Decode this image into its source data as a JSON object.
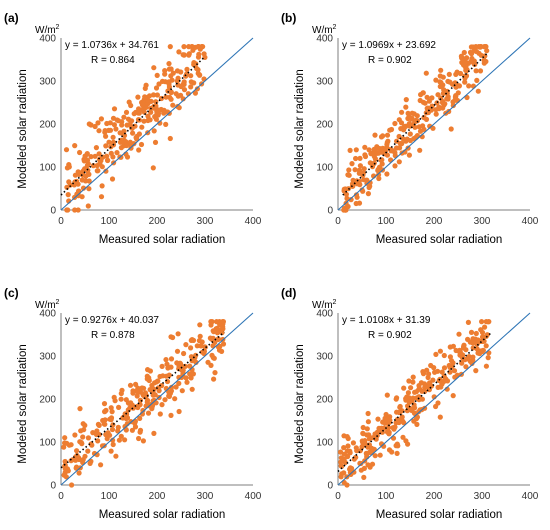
{
  "chart_data": [
    {
      "panel": "(a)",
      "type": "scatter",
      "unit": "W/m",
      "unit_sup": "2",
      "xlabel": "Measured solar radiation",
      "ylabel": "Modeled solar radiation",
      "xlim": [
        0,
        400
      ],
      "ylim": [
        0,
        400
      ],
      "xticks": [
        "0",
        "100",
        "200",
        "300",
        "400"
      ],
      "yticks": [
        "0",
        "100",
        "200",
        "300",
        "400"
      ],
      "equation": "y = 1.0736x + 34.761",
      "r_label": "R = 0.864",
      "fit": {
        "slope": 1.0736,
        "intercept": 34.761,
        "x_range": [
          0,
          300
        ]
      },
      "seed": 11,
      "point_count": 290,
      "noise_sd": 38,
      "x_range": [
        10,
        300
      ],
      "marker_color": "#ED7D31",
      "identity_line_color": "#2E75B6",
      "grid": false
    },
    {
      "panel": "(b)",
      "type": "scatter",
      "unit": "W/m",
      "unit_sup": "2",
      "xlabel": "Measured solar radiation",
      "ylabel": "Modeled solar radiation",
      "xlim": [
        0,
        400
      ],
      "ylim": [
        0,
        400
      ],
      "xticks": [
        "0",
        "100",
        "200",
        "300",
        "400"
      ],
      "yticks": [
        "0",
        "100",
        "200",
        "300",
        "400"
      ],
      "equation": "y = 1.0969x + 23.692",
      "r_label": "R = 0.902",
      "fit": {
        "slope": 1.0969,
        "intercept": 23.692,
        "x_range": [
          10,
          310
        ]
      },
      "seed": 23,
      "point_count": 290,
      "noise_sd": 32,
      "x_range": [
        10,
        310
      ],
      "marker_color": "#ED7D31",
      "identity_line_color": "#2E75B6",
      "grid": false
    },
    {
      "panel": "(c)",
      "type": "scatter",
      "unit": "W/m",
      "unit_sup": "2",
      "xlabel": "Measured solar radiation",
      "ylabel": "Modeled solar radiation",
      "xlim": [
        0,
        400
      ],
      "ylim": [
        0,
        400
      ],
      "xticks": [
        "0",
        "100",
        "200",
        "300",
        "400"
      ],
      "yticks": [
        "0",
        "100",
        "200",
        "300",
        "400"
      ],
      "equation": "y = 0.9276x + 40.037",
      "r_label": "R = 0.878",
      "fit": {
        "slope": 0.9276,
        "intercept": 40.037,
        "x_range": [
          0,
          340
        ]
      },
      "seed": 37,
      "point_count": 290,
      "noise_sd": 36,
      "x_range": [
        5,
        340
      ],
      "marker_color": "#ED7D31",
      "identity_line_color": "#2E75B6",
      "grid": false
    },
    {
      "panel": "(d)",
      "type": "scatter",
      "unit": "W/m",
      "unit_sup": "2",
      "xlabel": "Measured solar radiation",
      "ylabel": "Modeled solar radiation",
      "xlim": [
        0,
        400
      ],
      "ylim": [
        0,
        400
      ],
      "xticks": [
        "0",
        "100",
        "200",
        "300",
        "400"
      ],
      "yticks": [
        "0",
        "100",
        "200",
        "300",
        "400"
      ],
      "equation": "y = 1.0108x + 31.39",
      "r_label": "R = 0.902",
      "fit": {
        "slope": 1.0108,
        "intercept": 31.39,
        "x_range": [
          0,
          320
        ]
      },
      "seed": 53,
      "point_count": 290,
      "noise_sd": 31,
      "x_range": [
        5,
        320
      ],
      "marker_color": "#ED7D31",
      "identity_line_color": "#2E75B6",
      "grid": false
    }
  ]
}
